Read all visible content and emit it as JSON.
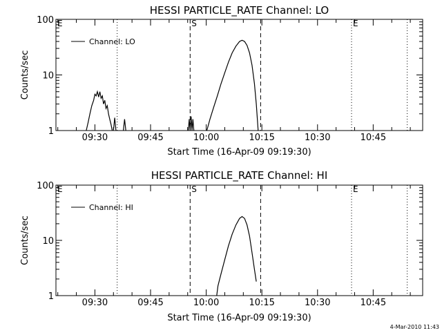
{
  "colors": {
    "foreground": "#000000",
    "background": "#ffffff"
  },
  "footer": {
    "timestamp": "4-Mar-2010 11:43"
  },
  "chart_data": [
    {
      "type": "line",
      "title": "HESSI PARTICLE_RATE Channel: LO",
      "xlabel": "Start Time (16-Apr-09 09:19:30)",
      "ylabel": "Counts/sec",
      "y_scale": "log",
      "ylim": [
        1,
        100
      ],
      "y_ticks": [
        {
          "v": 1,
          "label": "1"
        },
        {
          "v": 10,
          "label": "10"
        },
        {
          "v": 100,
          "label": "100"
        }
      ],
      "xlim": [
        "09:19:30",
        "10:58:20"
      ],
      "x_ticks": [
        "09:30",
        "09:45",
        "10:00",
        "10:15",
        "10:30",
        "10:45"
      ],
      "legend": {
        "position": "top-left",
        "entries": [
          "Channel: LO"
        ]
      },
      "markers": [
        {
          "time": "09:19:30",
          "style": "dotted",
          "label": "E"
        },
        {
          "time": "09:36:00",
          "style": "dotted",
          "label": ""
        },
        {
          "time": "09:55:40",
          "style": "dashed",
          "label": "S"
        },
        {
          "time": "10:14:40",
          "style": "dashed",
          "label": ""
        },
        {
          "time": "10:39:10",
          "style": "dotted",
          "label": "E"
        },
        {
          "time": "10:54:10",
          "style": "dotted",
          "label": ""
        }
      ],
      "series": [
        {
          "segments": [
            [
              [
                "09:27:40",
                1.0
              ],
              [
                "09:28:10",
                1.4
              ],
              [
                "09:28:40",
                2.0
              ],
              [
                "09:29:10",
                2.8
              ],
              [
                "09:29:40",
                3.5
              ],
              [
                "09:30:00",
                4.5
              ],
              [
                "09:30:20",
                4.2
              ],
              [
                "09:30:40",
                5.0
              ],
              [
                "09:31:00",
                4.0
              ],
              [
                "09:31:20",
                5.0
              ],
              [
                "09:31:40",
                3.8
              ],
              [
                "09:32:00",
                4.2
              ],
              [
                "09:32:20",
                3.0
              ],
              [
                "09:32:40",
                3.5
              ],
              [
                "09:33:00",
                2.5
              ],
              [
                "09:33:20",
                2.8
              ],
              [
                "09:33:40",
                2.0
              ],
              [
                "09:34:00",
                1.6
              ],
              [
                "09:34:20",
                1.3
              ],
              [
                "09:34:40",
                1.0
              ]
            ],
            [
              [
                "09:35:00",
                1.0
              ],
              [
                "09:35:20",
                1.7
              ],
              [
                "09:35:40",
                1.0
              ]
            ],
            [
              [
                "09:37:40",
                1.0
              ],
              [
                "09:38:00",
                1.6
              ],
              [
                "09:38:20",
                1.0
              ]
            ],
            [
              [
                "09:55:10",
                1.0
              ],
              [
                "09:55:25",
                1.6
              ],
              [
                "09:55:40",
                1.0
              ],
              [
                "09:55:55",
                1.8
              ],
              [
                "09:56:10",
                1.0
              ],
              [
                "09:56:25",
                1.6
              ],
              [
                "09:56:40",
                1.0
              ]
            ],
            [
              [
                "10:00:10",
                1.0
              ],
              [
                "10:01:00",
                1.6
              ],
              [
                "10:02:00",
                2.6
              ],
              [
                "10:03:00",
                4.2
              ],
              [
                "10:04:00",
                7.0
              ],
              [
                "10:05:00",
                11.0
              ],
              [
                "10:06:00",
                17.0
              ],
              [
                "10:07:00",
                25.0
              ],
              [
                "10:08:00",
                33.0
              ],
              [
                "10:09:00",
                40.0
              ],
              [
                "10:09:40",
                42.0
              ],
              [
                "10:10:20",
                40.0
              ],
              [
                "10:11:00",
                34.0
              ],
              [
                "10:11:40",
                25.0
              ],
              [
                "10:12:20",
                15.0
              ],
              [
                "10:13:00",
                7.0
              ],
              [
                "10:13:30",
                3.0
              ],
              [
                "10:14:00",
                1.0
              ]
            ]
          ]
        }
      ]
    },
    {
      "type": "line",
      "title": "HESSI PARTICLE_RATE Channel: HI",
      "xlabel": "Start Time (16-Apr-09 09:19:30)",
      "ylabel": "Counts/sec",
      "y_scale": "log",
      "ylim": [
        1,
        100
      ],
      "y_ticks": [
        {
          "v": 1,
          "label": "1"
        },
        {
          "v": 10,
          "label": "10"
        },
        {
          "v": 100,
          "label": "100"
        }
      ],
      "xlim": [
        "09:19:30",
        "10:58:20"
      ],
      "x_ticks": [
        "09:30",
        "09:45",
        "10:00",
        "10:15",
        "10:30",
        "10:45"
      ],
      "legend": {
        "position": "top-left",
        "entries": [
          "Channel: HI"
        ]
      },
      "markers": [
        {
          "time": "09:19:30",
          "style": "dotted",
          "label": "E"
        },
        {
          "time": "09:36:00",
          "style": "dotted",
          "label": ""
        },
        {
          "time": "09:55:40",
          "style": "dashed",
          "label": "S"
        },
        {
          "time": "10:14:40",
          "style": "dashed",
          "label": ""
        },
        {
          "time": "10:39:10",
          "style": "dotted",
          "label": "E"
        },
        {
          "time": "10:54:10",
          "style": "dotted",
          "label": ""
        }
      ],
      "series": [
        {
          "segments": [
            [
              [
                "10:02:50",
                1.0
              ],
              [
                "10:03:10",
                1.5
              ],
              [
                "10:04:00",
                2.5
              ],
              [
                "10:05:00",
                4.5
              ],
              [
                "10:06:00",
                8.0
              ],
              [
                "10:07:00",
                13.0
              ],
              [
                "10:08:00",
                19.0
              ],
              [
                "10:09:00",
                25.0
              ],
              [
                "10:09:40",
                27.0
              ],
              [
                "10:10:20",
                25.0
              ],
              [
                "10:11:00",
                19.0
              ],
              [
                "10:11:40",
                12.0
              ],
              [
                "10:12:20",
                6.0
              ],
              [
                "10:13:00",
                3.0
              ],
              [
                "10:13:30",
                1.8
              ]
            ]
          ]
        }
      ]
    }
  ]
}
